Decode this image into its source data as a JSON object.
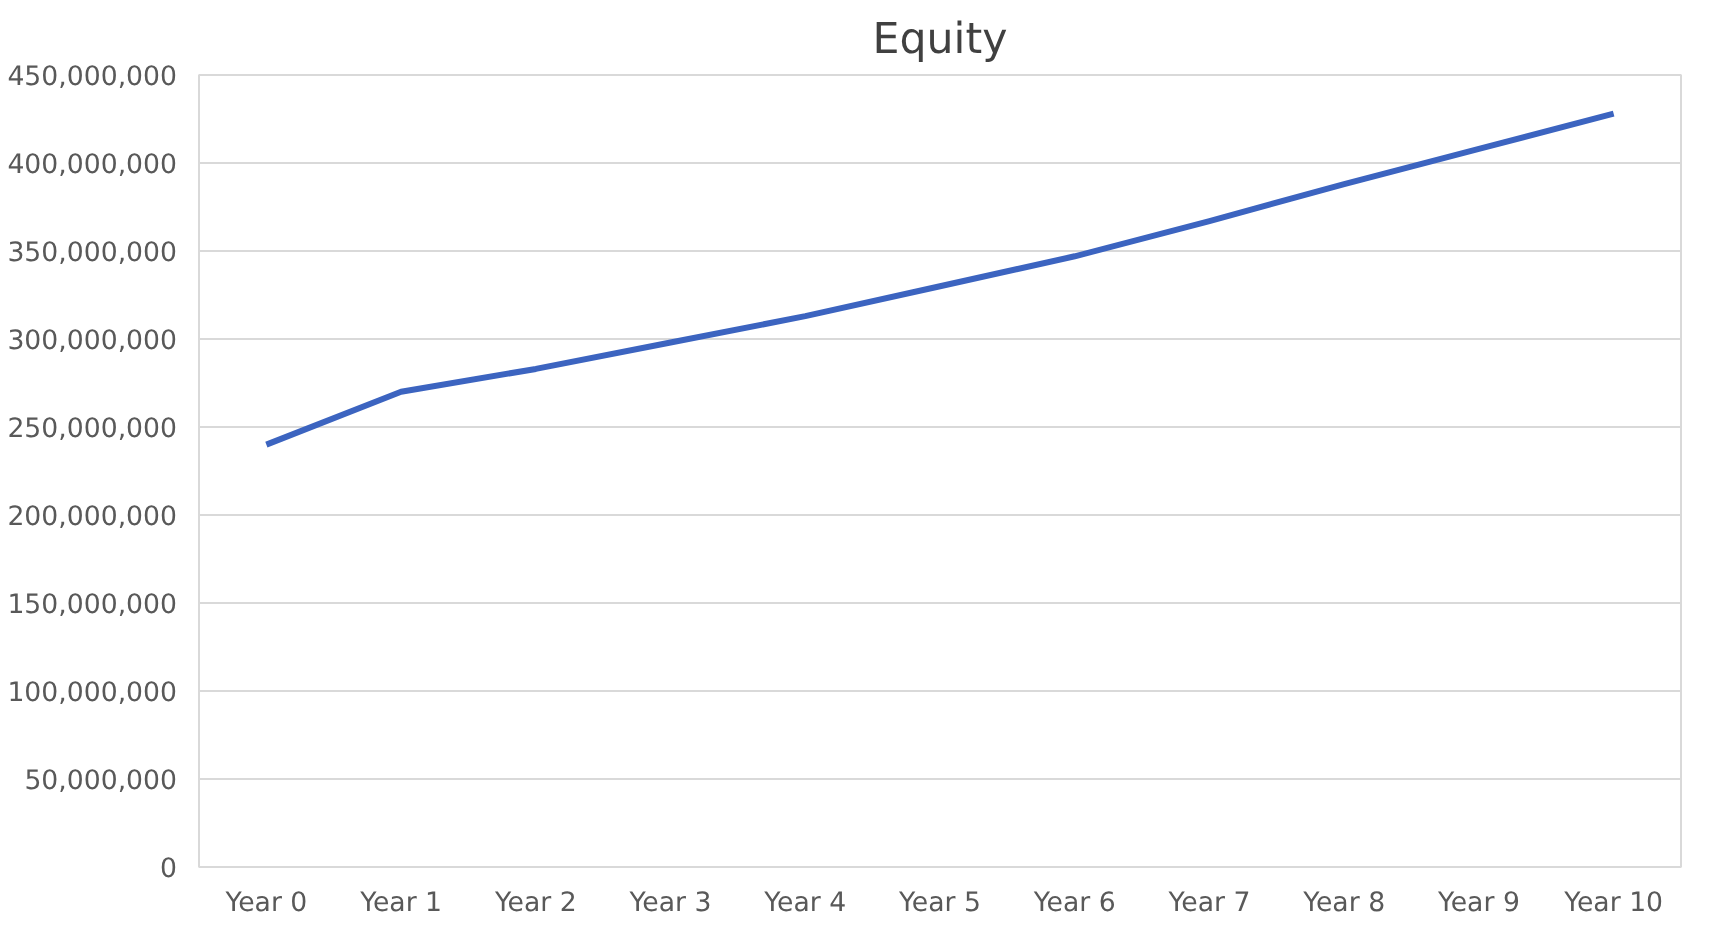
{
  "chart_data": {
    "type": "line",
    "title": "Equity",
    "categories": [
      "Year 0",
      "Year 1",
      "Year 2",
      "Year 3",
      "Year 4",
      "Year 5",
      "Year 6",
      "Year 7",
      "Year 8",
      "Year 9",
      "Year 10"
    ],
    "series": [
      {
        "color": "#3c64c0",
        "values": [
          240000000,
          270000000,
          283000000,
          298000000,
          313000000,
          330000000,
          347000000,
          367000000,
          388000000,
          408000000,
          428000000
        ]
      }
    ],
    "ylim": [
      0,
      450000000
    ],
    "yticks": [
      {
        "value": 0,
        "label": "0"
      },
      {
        "value": 50000000,
        "label": "50,000,000"
      },
      {
        "value": 100000000,
        "label": "100,000,000"
      },
      {
        "value": 150000000,
        "label": "150,000,000"
      },
      {
        "value": 200000000,
        "label": "200,000,000"
      },
      {
        "value": 250000000,
        "label": "250,000,000"
      },
      {
        "value": 300000000,
        "label": "300,000,000"
      },
      {
        "value": 350000000,
        "label": "350,000,000"
      },
      {
        "value": 400000000,
        "label": "400,000,000"
      },
      {
        "value": 450000000,
        "label": "450,000,000"
      }
    ],
    "grid": "y",
    "marker": "none",
    "line_style": "solid"
  }
}
